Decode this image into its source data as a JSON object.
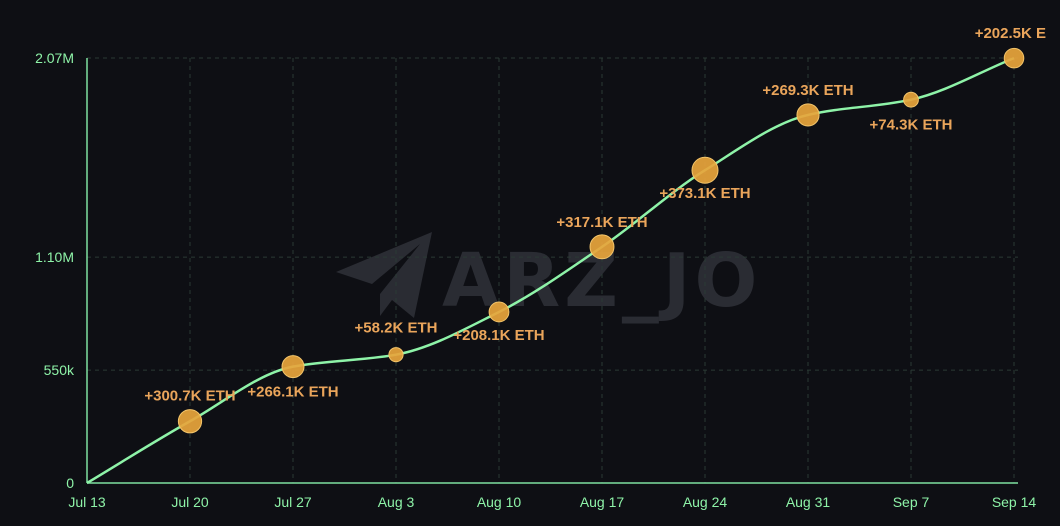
{
  "watermark": {
    "text": "ARZ_JO",
    "logo_icon": "telegram-plane-icon"
  },
  "colors": {
    "background": "#0e0f14",
    "line": "#8ef3a8",
    "axis": "#7ee0a0",
    "grid": "#2b3a34",
    "tick_text": "#8ef3a8",
    "marker": "#e8a53c",
    "label_text": "#eaa55b",
    "watermark": "#2a2c33"
  },
  "chart_data": {
    "type": "line",
    "title": "",
    "xlabel": "",
    "ylabel": "",
    "unit": "ETH",
    "x_ticks": [
      "Jul 13",
      "Jul 20",
      "Jul 27",
      "Aug 3",
      "Aug 10",
      "Aug 17",
      "Aug 24",
      "Aug 31",
      "Sep 7",
      "Sep 14"
    ],
    "y_ticks": [
      {
        "value": 0,
        "label": "0"
      },
      {
        "value": 550000,
        "label": "550k"
      },
      {
        "value": 1100000,
        "label": "1.10M"
      },
      {
        "value": 2070000,
        "label": "2.07M"
      }
    ],
    "ylim": [
      0,
      2070000
    ],
    "grid": true,
    "series": [
      {
        "values": [
          0,
          300700,
          566800,
          625000,
          833100,
          1150200,
          1523300,
          1792600,
          1866900,
          2069400
        ],
        "annotations": [
          "",
          "+300.7K ETH",
          "+266.1K ETH",
          "+58.2K ETH",
          "+208.1K ETH",
          "+317.1K ETH",
          "+373.1K ETH",
          "+269.3K ETH",
          "+74.3K ETH",
          "+202.5K E"
        ]
      }
    ]
  }
}
